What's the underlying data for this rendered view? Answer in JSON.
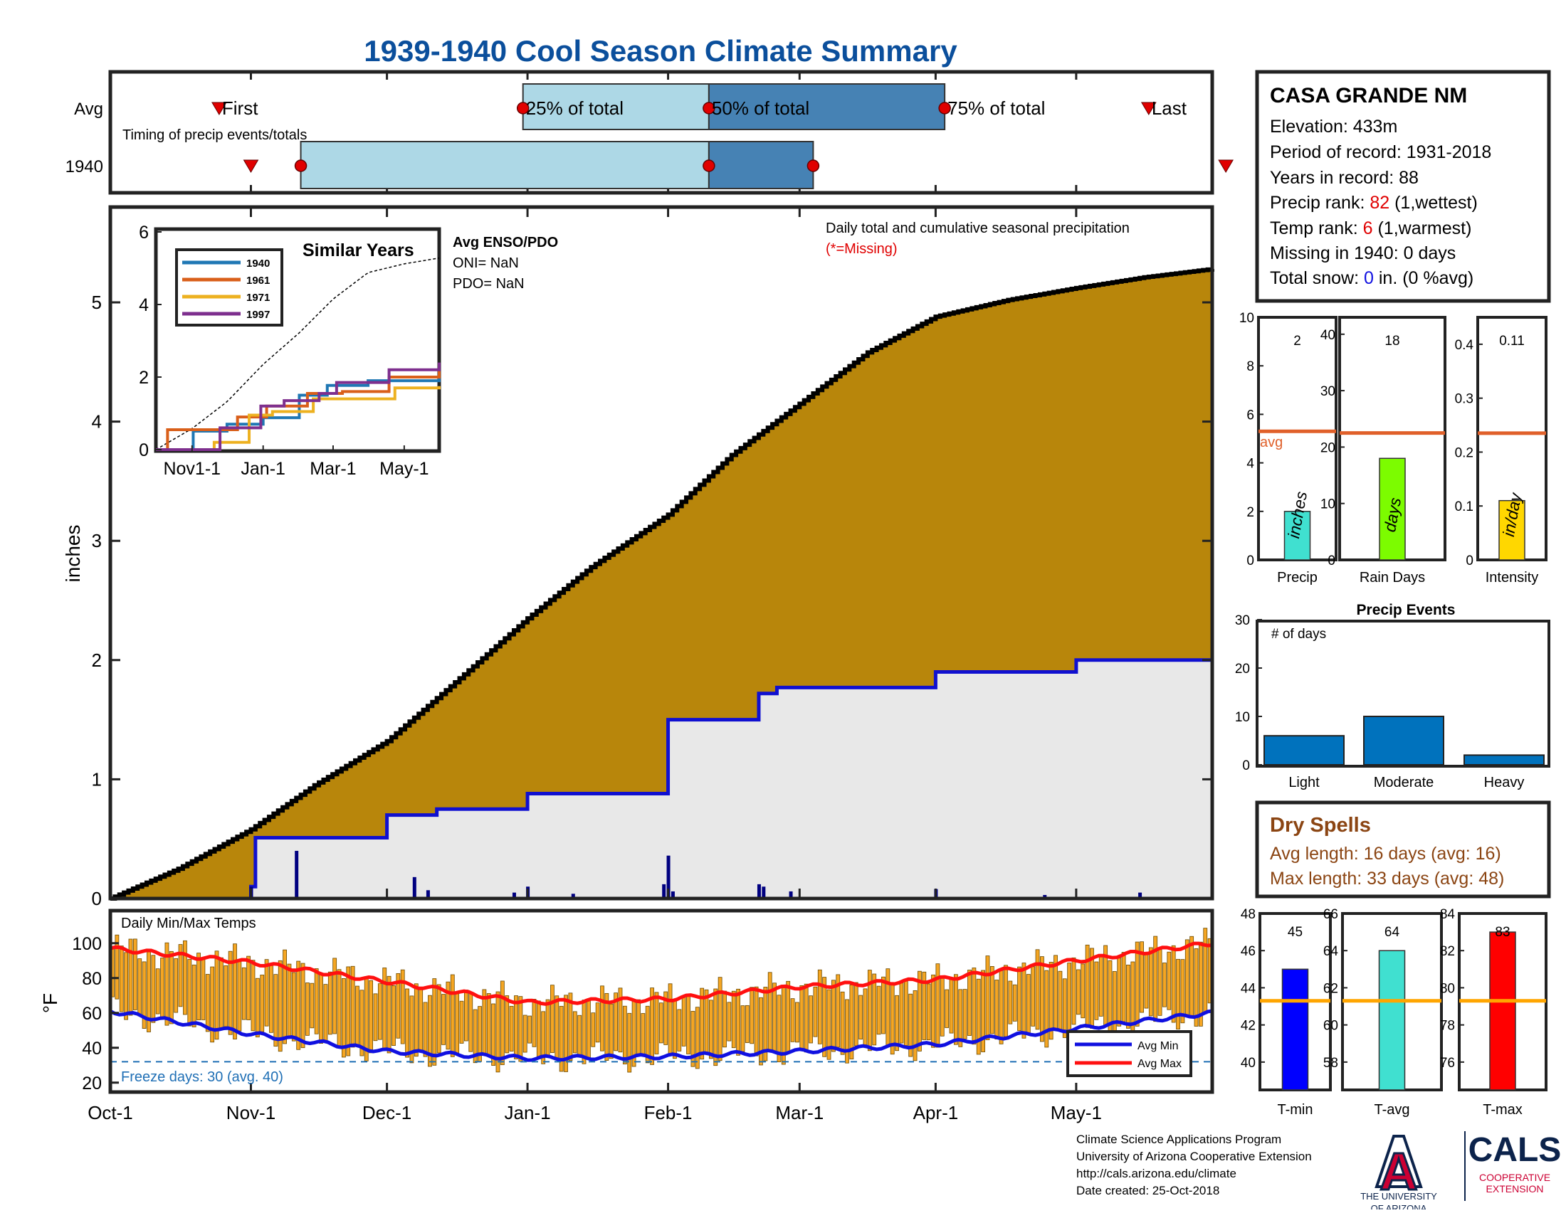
{
  "title": "1939-1940 Cool Season Climate Summary",
  "timing": {
    "row_labels": [
      "Avg",
      "1940"
    ],
    "caption": "Timing of precip events/totals",
    "markers": [
      "First",
      "25% of total",
      "50% of total",
      "75% of total",
      "Last"
    ],
    "avg_day_index": {
      "first": 24,
      "p25": 91,
      "p50": 132,
      "p75": 184,
      "last": 229
    },
    "y1940_day_index": {
      "first": 31,
      "p25": 42,
      "p50": 132,
      "p75": 155,
      "last": 246
    }
  },
  "station": {
    "name": "CASA GRANDE NM",
    "elevation_label": "Elevation: 433m",
    "period_label": "Period of record: 1931-2018",
    "years_label": "Years in record: 88",
    "precip_rank_prefix": "Precip rank: ",
    "precip_rank_value": "82",
    "precip_rank_suffix": " (1,wettest)",
    "temp_rank_prefix": "Temp rank: ",
    "temp_rank_value": "6",
    "temp_rank_suffix": " (1,warmest)",
    "missing_label": "Missing in 1940: 0 days",
    "snow_prefix": "Total snow: ",
    "snow_value": "0",
    "snow_suffix": " in. (0 %avg)"
  },
  "main_chart": {
    "ylabel": "inches",
    "caption": "Daily total and cumulative seasonal precipitation",
    "missing_note": "(*=Missing)",
    "x_ticks": [
      "Oct-1",
      "Nov-1",
      "Dec-1",
      "Jan-1",
      "Feb-1",
      "Mar-1",
      "Apr-1",
      "May-1"
    ],
    "x_tick_days": [
      0,
      31,
      61,
      92,
      123,
      152,
      182,
      213
    ],
    "y_ticks": [
      0,
      1,
      2,
      3,
      4,
      5
    ]
  },
  "inset": {
    "title": "Similar Years",
    "legend": [
      "1940",
      "1961",
      "1971",
      "1997"
    ],
    "x_ticks": [
      "Nov1-1",
      "Jan-1",
      "Mar-1",
      "May-1"
    ],
    "y_ticks": [
      0,
      2,
      4,
      6
    ],
    "enso_title": "Avg ENSO/PDO",
    "oni_label": "ONI= NaN",
    "pdo_label": "PDO= NaN"
  },
  "temp_chart": {
    "title": "Daily Min/Max Temps",
    "ylabel": "°F",
    "y_ticks": [
      20,
      40,
      60,
      80,
      100
    ],
    "freeze_label": "Freeze days: 30 (avg. 40)",
    "freeze_line_f": 32,
    "legend": [
      "Avg Min",
      "Avg Max"
    ]
  },
  "mini_precip": {
    "labels": [
      "Precip",
      "Rain Days",
      "Intensity"
    ],
    "values": [
      "2",
      "18",
      "0.11"
    ],
    "units": [
      "inches",
      "days",
      "in/day"
    ],
    "avg_label": "avg"
  },
  "precip_events": {
    "title": "Precip Events",
    "ylabel": "# of days",
    "categories": [
      "Light",
      "Moderate",
      "Heavy"
    ],
    "y_ticks": [
      0,
      10,
      20,
      30
    ]
  },
  "dry_spells": {
    "title": "Dry Spells",
    "avg_label": "Avg length: 16 days (avg: 16)",
    "max_label": "Max length: 33 days (avg: 48)"
  },
  "mini_temp": {
    "labels": [
      "T-min",
      "T-avg",
      "T-max"
    ],
    "values": [
      "45",
      "64",
      "83"
    ]
  },
  "footer": {
    "line1": "Climate Science Applications Program",
    "line2": "University of Arizona Cooperative Extension",
    "line3": "http://cals.arizona.edu/climate",
    "line4": "Date created: 25-Oct-2018"
  },
  "logos": {
    "ua_letter": "A",
    "ua_line1": "THE UNIVERSITY",
    "ua_line2": "OF ARIZONA",
    "cals": "CALS",
    "cals_line1": "COOPERATIVE",
    "cals_line2": "EXTENSION"
  },
  "colors": {
    "title": "#0b4f9c",
    "cum_avg_fill": "#b8860b",
    "year_fill": "#e8e8e8",
    "year_line": "#1010d0",
    "tmax_avg": "#ff1010",
    "tmin_avg": "#1010e0",
    "bar_orange": "#f5a623",
    "light_blue": "#add8e6",
    "steel_blue": "#4682b4",
    "marker_red": "#e00000",
    "avg_line": "#e0602a",
    "dry_brown": "#8b4513",
    "ua_red": "#cc0033",
    "ua_navy": "#0c234b"
  },
  "chart_data": [
    {
      "type": "area",
      "title": "Daily total and cumulative seasonal precipitation",
      "ylabel": "inches",
      "xlim": [
        "Oct-1",
        "May-31"
      ],
      "ylim": [
        0,
        5.8
      ],
      "series": [
        {
          "name": "avg",
          "x_day": [
            0,
            15,
            31,
            45,
            61,
            75,
            92,
            106,
            123,
            137,
            152,
            167,
            182,
            198,
            213,
            228,
            243
          ],
          "values": [
            0.0,
            0.25,
            0.58,
            0.95,
            1.32,
            1.78,
            2.35,
            2.78,
            3.22,
            3.72,
            4.15,
            4.58,
            4.88,
            5.02,
            5.12,
            5.21,
            5.28
          ]
        },
        {
          "name": "1940",
          "x_day": [
            0,
            31,
            32,
            47,
            61,
            72,
            92,
            123,
            127,
            143,
            147,
            182,
            213,
            243
          ],
          "values": [
            0.0,
            0.1,
            0.51,
            0.51,
            0.7,
            0.75,
            0.88,
            1.5,
            1.5,
            1.72,
            1.77,
            1.9,
            2.0,
            2.0
          ]
        }
      ],
      "daily_precip_1940": [
        {
          "day": 31,
          "inches": 0.1
        },
        {
          "day": 41,
          "inches": 0.4
        },
        {
          "day": 67,
          "inches": 0.18
        },
        {
          "day": 70,
          "inches": 0.07
        },
        {
          "day": 89,
          "inches": 0.05
        },
        {
          "day": 92,
          "inches": 0.1
        },
        {
          "day": 102,
          "inches": 0.04
        },
        {
          "day": 122,
          "inches": 0.12
        },
        {
          "day": 123,
          "inches": 0.36
        },
        {
          "day": 124,
          "inches": 0.06
        },
        {
          "day": 143,
          "inches": 0.12
        },
        {
          "day": 144,
          "inches": 0.1
        },
        {
          "day": 150,
          "inches": 0.06
        },
        {
          "day": 182,
          "inches": 0.08
        },
        {
          "day": 206,
          "inches": 0.03
        },
        {
          "day": 227,
          "inches": 0.05
        }
      ]
    },
    {
      "type": "line",
      "title": "Similar Years",
      "xlim": [
        "Oct-1",
        "May-31"
      ],
      "ylim": [
        0,
        6
      ],
      "series": [
        {
          "name": "1940",
          "x_day": [
            0,
            31,
            32,
            61,
            92,
            123,
            127,
            147,
            182,
            243
          ],
          "values": [
            0,
            0,
            0.51,
            0.7,
            0.88,
            1.5,
            1.5,
            1.77,
            1.9,
            2.0
          ]
        },
        {
          "name": "1961",
          "x_day": [
            0,
            10,
            40,
            70,
            95,
            130,
            160,
            200,
            243
          ],
          "values": [
            0,
            0.55,
            0.55,
            0.9,
            1.2,
            1.55,
            1.6,
            2.0,
            2.2
          ]
        },
        {
          "name": "1971",
          "x_day": [
            0,
            40,
            50,
            80,
            100,
            135,
            170,
            205,
            243
          ],
          "values": [
            0,
            0,
            0.2,
            0.95,
            1.05,
            1.4,
            1.4,
            1.7,
            1.75
          ]
        },
        {
          "name": "1997",
          "x_day": [
            0,
            20,
            55,
            90,
            110,
            140,
            155,
            200,
            243
          ],
          "values": [
            0,
            0,
            0.6,
            1.2,
            1.35,
            1.55,
            1.85,
            2.2,
            2.4
          ]
        }
      ],
      "avg_values": [
        0.0,
        0.58,
        1.32,
        2.35,
        3.22,
        4.15,
        4.88,
        5.12,
        5.28
      ],
      "avg_x_day": [
        0,
        31,
        61,
        92,
        123,
        152,
        182,
        213,
        243
      ]
    },
    {
      "type": "bar",
      "title": "Daily Min/Max Temps",
      "ylabel": "°F",
      "ylim": [
        15,
        108
      ],
      "avg_max": {
        "x_day": [
          0,
          31,
          61,
          92,
          123,
          152,
          182,
          213,
          243
        ],
        "values": [
          97,
          89,
          78,
          66,
          68,
          75,
          79,
          90,
          100
        ]
      },
      "avg_min": {
        "x_day": [
          0,
          31,
          61,
          92,
          123,
          152,
          182,
          213,
          243
        ],
        "values": [
          61,
          48,
          38,
          34,
          35,
          38,
          42,
          51,
          60
        ]
      }
    },
    {
      "type": "bar",
      "categories": [
        "Precip",
        "Rain Days",
        "Intensity"
      ],
      "values": [
        2,
        18,
        0.11
      ],
      "averages": [
        5.3,
        22.5,
        0.235
      ],
      "ylim": [
        [
          0,
          10
        ],
        [
          0,
          43
        ],
        [
          0,
          0.45
        ]
      ]
    },
    {
      "type": "bar",
      "title": "Precip Events",
      "categories": [
        "Light",
        "Moderate",
        "Heavy"
      ],
      "values": [
        6,
        10,
        2
      ],
      "ylim": [
        0,
        30
      ]
    },
    {
      "type": "bar",
      "categories": [
        "T-min",
        "T-avg",
        "T-max"
      ],
      "values": [
        45,
        64,
        83
      ],
      "averages": [
        43.3,
        61.3,
        79.3
      ],
      "ylim": [
        [
          38.5,
          48
        ],
        [
          56.5,
          66
        ],
        [
          74.5,
          84
        ]
      ]
    }
  ]
}
